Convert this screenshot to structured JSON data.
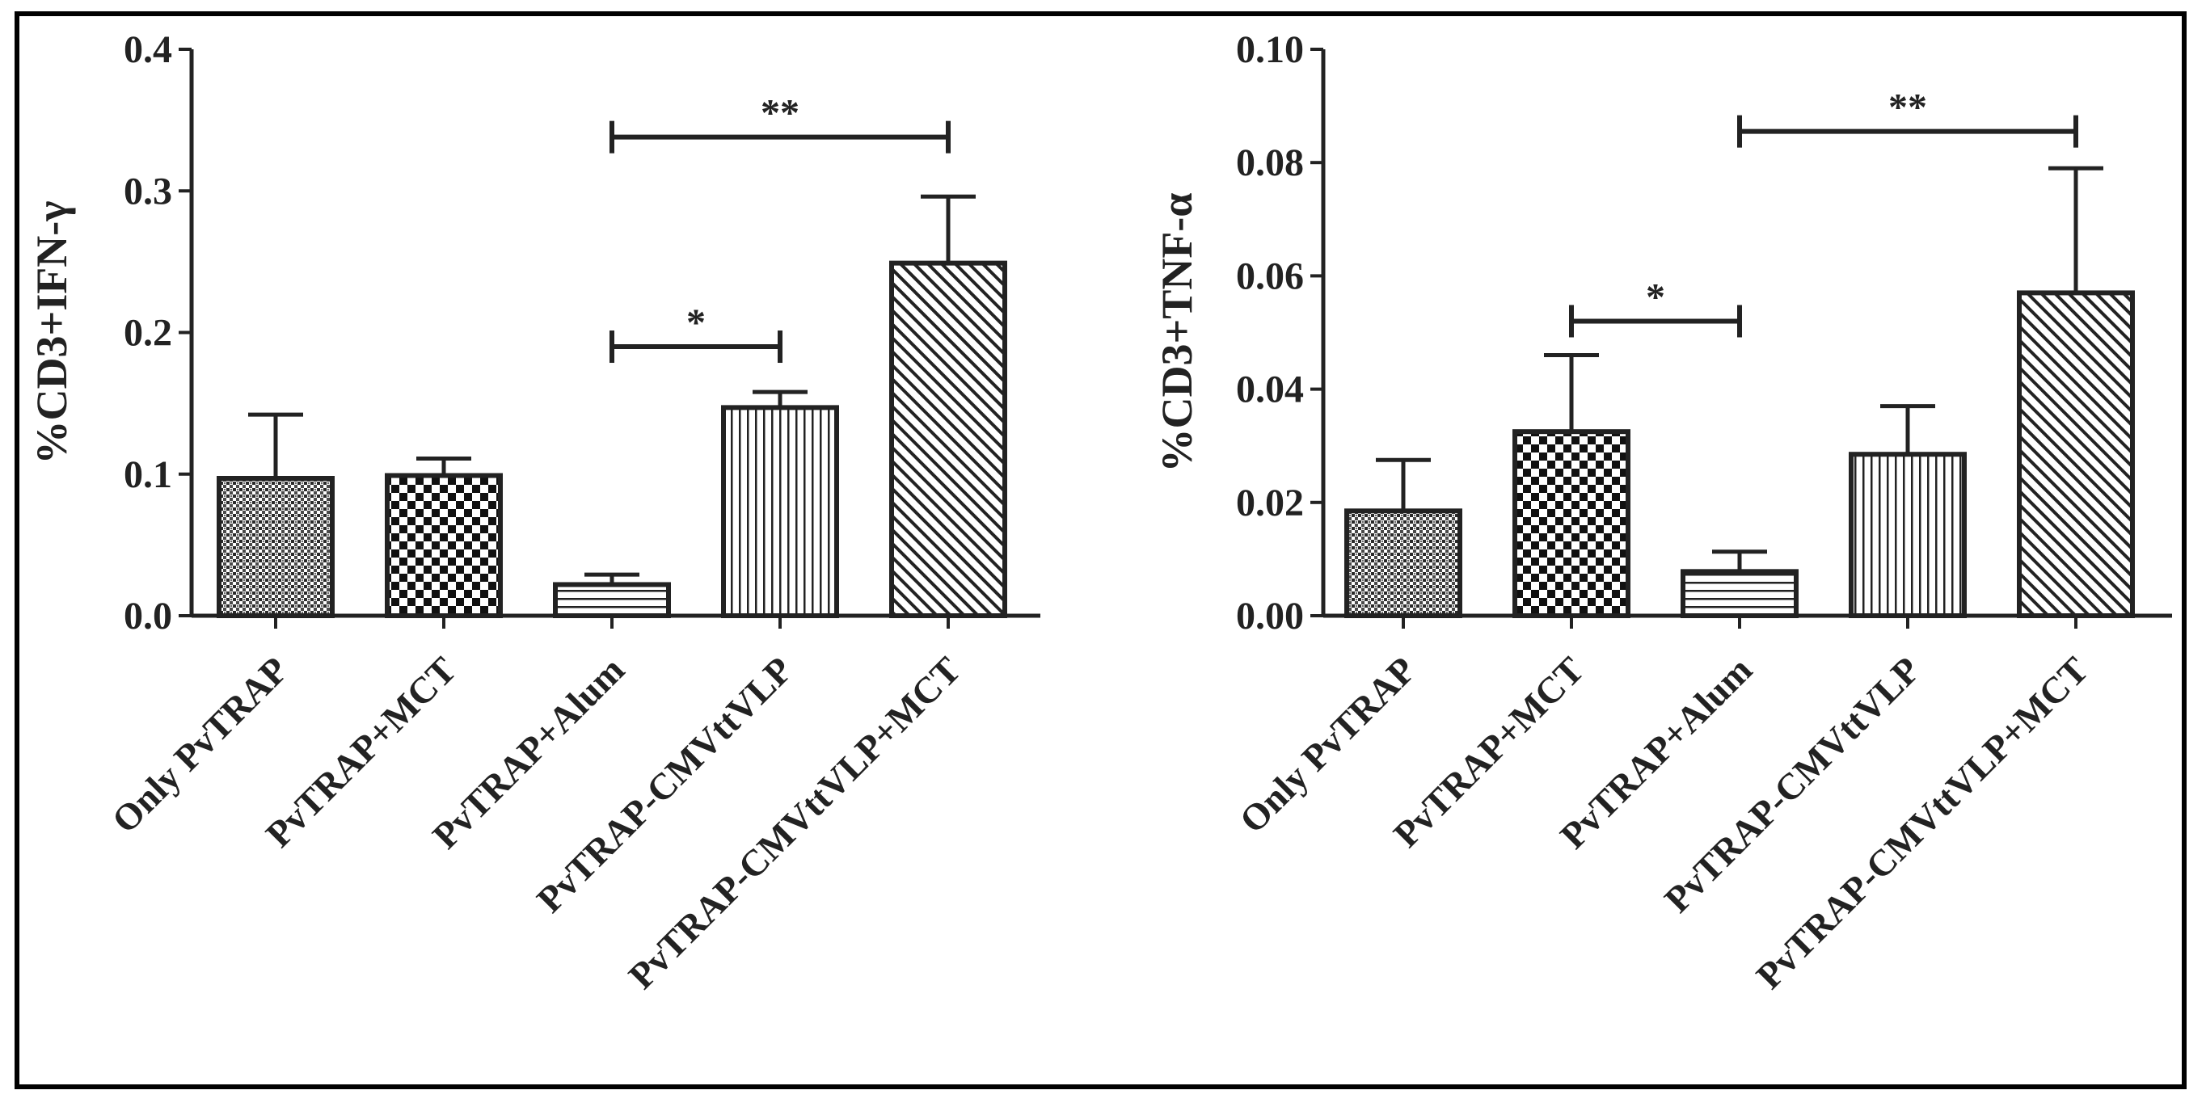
{
  "chart_data": [
    {
      "type": "bar",
      "ylabel": "%CD3+IFN-γ",
      "categories": [
        "Only PvTRAP",
        "PvTRAP+MCT",
        "PvTRAP+Alum",
        "PvTRAP-CMVttVLP",
        "PvTRAP-CMVttVLP+MCT"
      ],
      "values": [
        0.097,
        0.099,
        0.022,
        0.147,
        0.249
      ],
      "errors": [
        0.045,
        0.012,
        0.007,
        0.011,
        0.047
      ],
      "ylim": [
        0,
        0.4
      ],
      "yticks": [
        "0.0",
        "0.1",
        "0.2",
        "0.3",
        "0.4"
      ],
      "patterns": [
        "dense-dots",
        "checker",
        "horizontal",
        "vertical",
        "diagonal"
      ],
      "significance": [
        {
          "from": 2,
          "to": 4,
          "label": "**",
          "y": 0.338
        },
        {
          "from": 2,
          "to": 3,
          "label": "*",
          "y": 0.19
        }
      ]
    },
    {
      "type": "bar",
      "ylabel": "%CD3+TNF-α",
      "categories": [
        "Only PvTRAP",
        "PvTRAP+MCT",
        "PvTRAP+Alum",
        "PvTRAP-CMVttVLP",
        "PvTRAP-CMVttVLP+MCT"
      ],
      "values": [
        0.0185,
        0.0325,
        0.0078,
        0.0285,
        0.057
      ],
      "errors": [
        0.009,
        0.0135,
        0.0035,
        0.0085,
        0.022
      ],
      "ylim": [
        0,
        0.1
      ],
      "yticks": [
        "0.00",
        "0.02",
        "0.04",
        "0.06",
        "0.08",
        "0.10"
      ],
      "patterns": [
        "dense-dots",
        "checker",
        "horizontal",
        "vertical",
        "diagonal"
      ],
      "significance": [
        {
          "from": 2,
          "to": 4,
          "label": "**",
          "y": 0.0855
        },
        {
          "from": 1,
          "to": 2,
          "label": "*",
          "y": 0.052
        }
      ]
    }
  ]
}
